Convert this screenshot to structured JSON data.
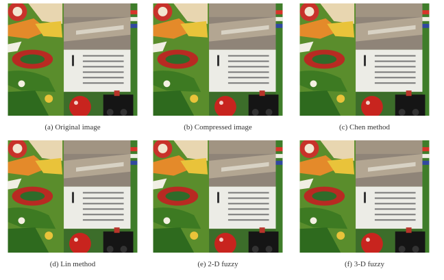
{
  "figure": {
    "panels": [
      {
        "caption": "(a) Original image"
      },
      {
        "caption": "(b) Compressed image"
      },
      {
        "caption": "(c) Chen method"
      },
      {
        "caption": "(d) Lin method"
      },
      {
        "caption": "(e) 2-D fuzzy"
      },
      {
        "caption": "(f) 3-D fuzzy"
      }
    ]
  }
}
